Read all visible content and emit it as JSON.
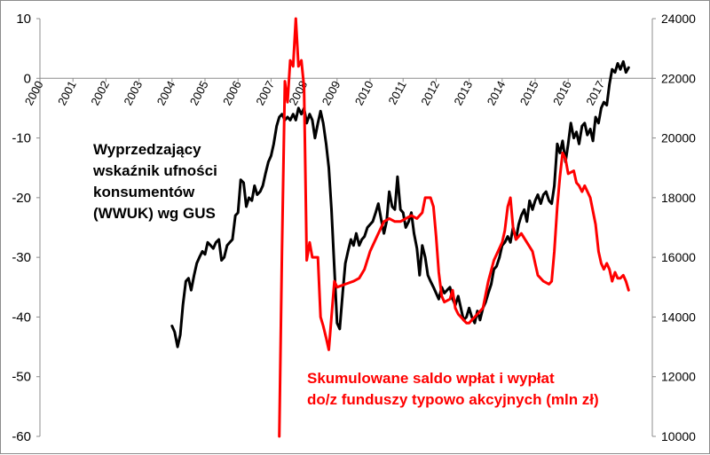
{
  "chart_data": {
    "type": "line",
    "title": "",
    "annotations": {
      "black": [
        "Wyprzedzający",
        "wskaźnik ufności",
        "konsumentów",
        "(WWUK) wg GUS"
      ],
      "red": [
        "Skumulowane saldo wpłat i wypłat",
        "do/z funduszy typowo akcyjnych (mln zł)"
      ]
    },
    "x_axis": {
      "tick_labels": [
        "2000",
        "2001",
        "2002",
        "2003",
        "2004",
        "2005",
        "2006",
        "2007",
        "2008",
        "2009",
        "2010",
        "2011",
        "2012",
        "2013",
        "2014",
        "2015",
        "2016",
        "2017"
      ],
      "range": [
        2000,
        2018
      ]
    },
    "y_left": {
      "ticks": [
        10,
        0,
        -10,
        -20,
        -30,
        -40,
        -50,
        -60
      ],
      "range": [
        -60,
        10
      ]
    },
    "y_right": {
      "ticks": [
        24000,
        22000,
        20000,
        18000,
        16000,
        14000,
        12000,
        10000
      ],
      "range": [
        10000,
        24000
      ]
    },
    "grid": false,
    "series": [
      {
        "color": "#000000",
        "axis": "left",
        "points": [
          [
            2004.0,
            -41.5
          ],
          [
            2004.08,
            -42.5
          ],
          [
            2004.17,
            -45
          ],
          [
            2004.25,
            -43
          ],
          [
            2004.33,
            -38
          ],
          [
            2004.42,
            -34
          ],
          [
            2004.5,
            -33.5
          ],
          [
            2004.58,
            -35.5
          ],
          [
            2004.67,
            -33
          ],
          [
            2004.75,
            -31
          ],
          [
            2004.83,
            -30
          ],
          [
            2004.92,
            -29
          ],
          [
            2005.0,
            -29.5
          ],
          [
            2005.08,
            -27.5
          ],
          [
            2005.17,
            -28
          ],
          [
            2005.25,
            -28.5
          ],
          [
            2005.33,
            -27.5
          ],
          [
            2005.42,
            -27
          ],
          [
            2005.5,
            -30.5
          ],
          [
            2005.58,
            -30
          ],
          [
            2005.67,
            -28
          ],
          [
            2005.75,
            -27.5
          ],
          [
            2005.83,
            -27
          ],
          [
            2005.92,
            -23
          ],
          [
            2006.0,
            -22.5
          ],
          [
            2006.08,
            -17
          ],
          [
            2006.17,
            -17.5
          ],
          [
            2006.25,
            -21.5
          ],
          [
            2006.33,
            -20
          ],
          [
            2006.42,
            -20.5
          ],
          [
            2006.5,
            -18
          ],
          [
            2006.58,
            -19.5
          ],
          [
            2006.67,
            -19
          ],
          [
            2006.75,
            -18
          ],
          [
            2006.83,
            -16
          ],
          [
            2006.92,
            -14
          ],
          [
            2007.0,
            -13
          ],
          [
            2007.08,
            -11
          ],
          [
            2007.17,
            -8
          ],
          [
            2007.25,
            -6.5
          ],
          [
            2007.33,
            -6
          ],
          [
            2007.42,
            -7
          ],
          [
            2007.5,
            -6.5
          ],
          [
            2007.58,
            -7
          ],
          [
            2007.67,
            -6
          ],
          [
            2007.75,
            -7
          ],
          [
            2007.83,
            -5
          ],
          [
            2007.92,
            -6
          ],
          [
            2008.0,
            -5
          ],
          [
            2008.08,
            -7.5
          ],
          [
            2008.17,
            -6
          ],
          [
            2008.25,
            -7
          ],
          [
            2008.33,
            -10
          ],
          [
            2008.42,
            -7.5
          ],
          [
            2008.5,
            -5.5
          ],
          [
            2008.58,
            -7.5
          ],
          [
            2008.67,
            -11
          ],
          [
            2008.75,
            -15
          ],
          [
            2008.83,
            -22
          ],
          [
            2008.92,
            -32
          ],
          [
            2009.0,
            -41
          ],
          [
            2009.08,
            -42
          ],
          [
            2009.17,
            -36
          ],
          [
            2009.25,
            -31
          ],
          [
            2009.33,
            -29
          ],
          [
            2009.42,
            -27
          ],
          [
            2009.5,
            -28
          ],
          [
            2009.58,
            -26
          ],
          [
            2009.67,
            -28
          ],
          [
            2009.75,
            -27
          ],
          [
            2009.83,
            -26.5
          ],
          [
            2009.92,
            -25
          ],
          [
            2010.0,
            -24.5
          ],
          [
            2010.08,
            -24
          ],
          [
            2010.17,
            -22.5
          ],
          [
            2010.25,
            -21
          ],
          [
            2010.33,
            -23.5
          ],
          [
            2010.42,
            -26
          ],
          [
            2010.5,
            -24
          ],
          [
            2010.58,
            -19
          ],
          [
            2010.67,
            -21.5
          ],
          [
            2010.75,
            -22
          ],
          [
            2010.83,
            -16.5
          ],
          [
            2010.92,
            -22
          ],
          [
            2011.0,
            -22.5
          ],
          [
            2011.08,
            -25
          ],
          [
            2011.17,
            -24
          ],
          [
            2011.25,
            -22.5
          ],
          [
            2011.33,
            -26
          ],
          [
            2011.42,
            -28.5
          ],
          [
            2011.5,
            -33
          ],
          [
            2011.58,
            -28
          ],
          [
            2011.67,
            -30
          ],
          [
            2011.75,
            -33
          ],
          [
            2011.83,
            -34
          ],
          [
            2011.92,
            -35
          ],
          [
            2012.0,
            -36
          ],
          [
            2012.08,
            -37
          ],
          [
            2012.17,
            -35
          ],
          [
            2012.25,
            -36
          ],
          [
            2012.33,
            -35.5
          ],
          [
            2012.42,
            -35
          ],
          [
            2012.5,
            -37
          ],
          [
            2012.58,
            -38
          ],
          [
            2012.67,
            -36.5
          ],
          [
            2012.75,
            -38.5
          ],
          [
            2012.83,
            -40.5
          ],
          [
            2012.92,
            -40
          ],
          [
            2013.0,
            -38.5
          ],
          [
            2013.08,
            -40
          ],
          [
            2013.17,
            -41
          ],
          [
            2013.25,
            -39
          ],
          [
            2013.33,
            -40.5
          ],
          [
            2013.42,
            -38.5
          ],
          [
            2013.5,
            -37.5
          ],
          [
            2013.58,
            -36
          ],
          [
            2013.67,
            -34.5
          ],
          [
            2013.75,
            -32
          ],
          [
            2013.83,
            -31.5
          ],
          [
            2013.92,
            -30
          ],
          [
            2014.0,
            -28
          ],
          [
            2014.08,
            -27.5
          ],
          [
            2014.17,
            -26.5
          ],
          [
            2014.25,
            -27.5
          ],
          [
            2014.33,
            -25
          ],
          [
            2014.42,
            -27
          ],
          [
            2014.5,
            -24.5
          ],
          [
            2014.58,
            -23
          ],
          [
            2014.67,
            -22
          ],
          [
            2014.75,
            -24
          ],
          [
            2014.83,
            -20.5
          ],
          [
            2014.92,
            -22
          ],
          [
            2015.0,
            -20.5
          ],
          [
            2015.08,
            -19.5
          ],
          [
            2015.17,
            -21
          ],
          [
            2015.25,
            -19.5
          ],
          [
            2015.33,
            -19
          ],
          [
            2015.42,
            -20.5
          ],
          [
            2015.5,
            -21
          ],
          [
            2015.58,
            -18
          ],
          [
            2015.67,
            -11
          ],
          [
            2015.75,
            -12.5
          ],
          [
            2015.83,
            -10.5
          ],
          [
            2015.92,
            -14
          ],
          [
            2016.0,
            -11
          ],
          [
            2016.08,
            -7.5
          ],
          [
            2016.17,
            -10
          ],
          [
            2016.25,
            -9
          ],
          [
            2016.33,
            -11
          ],
          [
            2016.42,
            -8
          ],
          [
            2016.5,
            -7.5
          ],
          [
            2016.58,
            -9.5
          ],
          [
            2016.67,
            -8.5
          ],
          [
            2016.75,
            -10.5
          ],
          [
            2016.83,
            -6.5
          ],
          [
            2016.92,
            -7.5
          ],
          [
            2017.0,
            -5
          ],
          [
            2017.08,
            -4
          ],
          [
            2017.17,
            -4.5
          ],
          [
            2017.25,
            -1
          ],
          [
            2017.33,
            1.5
          ],
          [
            2017.42,
            1
          ],
          [
            2017.5,
            2.5
          ],
          [
            2017.58,
            1.5
          ],
          [
            2017.67,
            2.8
          ],
          [
            2017.75,
            1
          ],
          [
            2017.83,
            1.8
          ]
        ]
      },
      {
        "color": "#ff0000",
        "axis": "right",
        "points": [
          [
            2007.25,
            10000
          ],
          [
            2007.33,
            16200
          ],
          [
            2007.42,
            21900
          ],
          [
            2007.5,
            21200
          ],
          [
            2007.58,
            22600
          ],
          [
            2007.67,
            22400
          ],
          [
            2007.75,
            24000
          ],
          [
            2007.83,
            22400
          ],
          [
            2007.92,
            22600
          ],
          [
            2008.0,
            21700
          ],
          [
            2008.08,
            15900
          ],
          [
            2008.17,
            16500
          ],
          [
            2008.25,
            16000
          ],
          [
            2008.33,
            16000
          ],
          [
            2008.42,
            16000
          ],
          [
            2008.5,
            14000
          ],
          [
            2008.58,
            13700
          ],
          [
            2008.67,
            13300
          ],
          [
            2008.75,
            12900
          ],
          [
            2008.83,
            14000
          ],
          [
            2008.92,
            15200
          ],
          [
            2009.0,
            15000
          ],
          [
            2009.25,
            15100
          ],
          [
            2009.5,
            15200
          ],
          [
            2009.67,
            15300
          ],
          [
            2009.83,
            15600
          ],
          [
            2010.0,
            16200
          ],
          [
            2010.25,
            16800
          ],
          [
            2010.42,
            17200
          ],
          [
            2010.58,
            17300
          ],
          [
            2010.75,
            17200
          ],
          [
            2010.92,
            17200
          ],
          [
            2011.08,
            17300
          ],
          [
            2011.25,
            17400
          ],
          [
            2011.42,
            17300
          ],
          [
            2011.58,
            17500
          ],
          [
            2011.67,
            18000
          ],
          [
            2011.83,
            18000
          ],
          [
            2011.92,
            17700
          ],
          [
            2012.0,
            16700
          ],
          [
            2012.08,
            15500
          ],
          [
            2012.17,
            14700
          ],
          [
            2012.25,
            14500
          ],
          [
            2012.42,
            14600
          ],
          [
            2012.5,
            14900
          ],
          [
            2012.58,
            14300
          ],
          [
            2012.67,
            14100
          ],
          [
            2012.75,
            14000
          ],
          [
            2012.83,
            13900
          ],
          [
            2012.92,
            13800
          ],
          [
            2013.0,
            13800
          ],
          [
            2013.08,
            13900
          ],
          [
            2013.17,
            14000
          ],
          [
            2013.25,
            14100
          ],
          [
            2013.42,
            14300
          ],
          [
            2013.58,
            15200
          ],
          [
            2013.75,
            15900
          ],
          [
            2014.0,
            16500
          ],
          [
            2014.08,
            16900
          ],
          [
            2014.17,
            17700
          ],
          [
            2014.25,
            18000
          ],
          [
            2014.33,
            17000
          ],
          [
            2014.42,
            16600
          ],
          [
            2014.58,
            16800
          ],
          [
            2014.75,
            16500
          ],
          [
            2014.92,
            16200
          ],
          [
            2015.0,
            15800
          ],
          [
            2015.08,
            15400
          ],
          [
            2015.25,
            15200
          ],
          [
            2015.42,
            15100
          ],
          [
            2015.5,
            15200
          ],
          [
            2015.58,
            16200
          ],
          [
            2015.67,
            17700
          ],
          [
            2015.75,
            18700
          ],
          [
            2015.83,
            19500
          ],
          [
            2015.92,
            19300
          ],
          [
            2016.0,
            18800
          ],
          [
            2016.17,
            18900
          ],
          [
            2016.25,
            18500
          ],
          [
            2016.33,
            18400
          ],
          [
            2016.42,
            18200
          ],
          [
            2016.5,
            18400
          ],
          [
            2016.67,
            18000
          ],
          [
            2016.83,
            17100
          ],
          [
            2016.92,
            16200
          ],
          [
            2017.0,
            15800
          ],
          [
            2017.08,
            15600
          ],
          [
            2017.17,
            15800
          ],
          [
            2017.25,
            15600
          ],
          [
            2017.33,
            15200
          ],
          [
            2017.42,
            15500
          ],
          [
            2017.5,
            15300
          ],
          [
            2017.58,
            15300
          ],
          [
            2017.67,
            15400
          ],
          [
            2017.75,
            15200
          ],
          [
            2017.83,
            14900
          ]
        ]
      }
    ]
  }
}
